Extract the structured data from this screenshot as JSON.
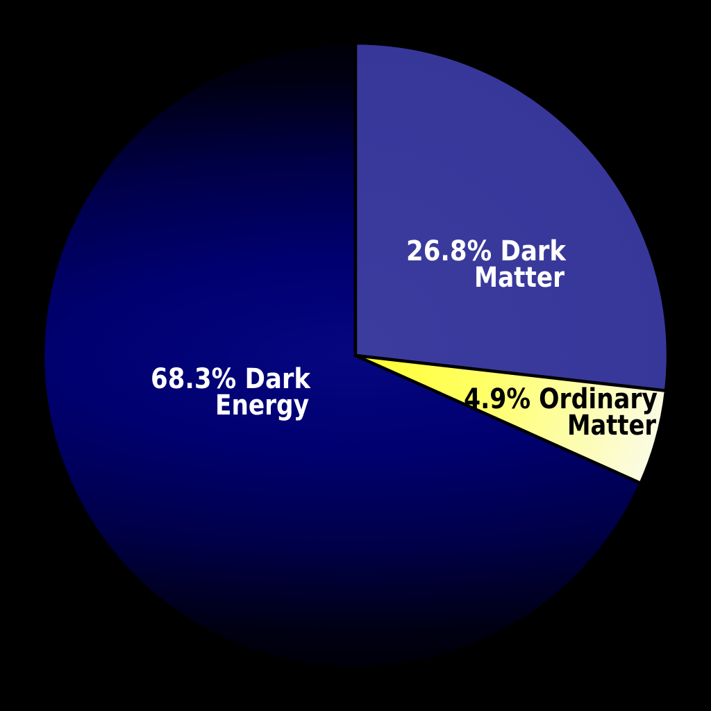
{
  "background_color": "#000000",
  "chart_data": {
    "type": "pie",
    "title": "",
    "legend": "none",
    "start_angle_deg": 0,
    "direction": "clockwise",
    "stroke_color": "#000000",
    "center": [
      512,
      512
    ],
    "radius": 450,
    "slices": [
      {
        "name": "Dark Matter",
        "value_pct": 26.8,
        "label_lines": [
          "26.8% Dark",
          "Matter"
        ],
        "label_color": "#ffffff",
        "gradient_stops": [
          "#3c3c9f",
          "#37379a"
        ]
      },
      {
        "name": "Ordinary Matter",
        "value_pct": 4.9,
        "label_lines": [
          "4.9% Ordinary",
          "Matter"
        ],
        "label_color": "#000000",
        "gradient_stops": [
          "#ffff2e",
          "#ffff66",
          "#fbfbe4"
        ]
      },
      {
        "name": "Dark Energy",
        "value_pct": 68.3,
        "label_lines": [
          "68.3% Dark",
          "Energy"
        ],
        "label_color": "#ffffff",
        "gradient_stops": [
          "#060680",
          "#000070",
          "#000048",
          "#000012",
          "#000000"
        ]
      }
    ]
  }
}
